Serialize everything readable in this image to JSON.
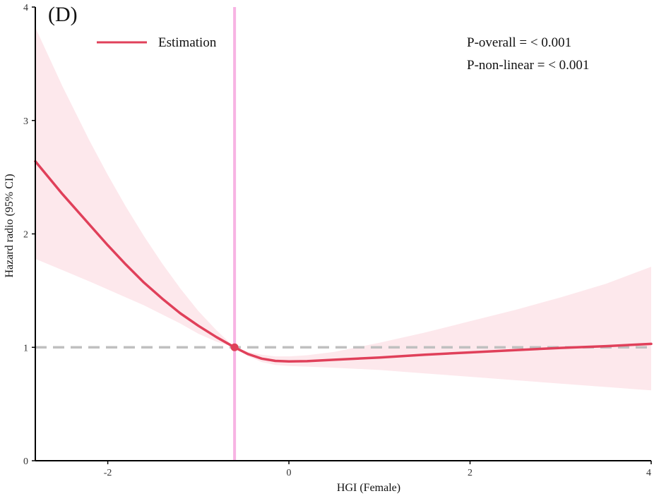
{
  "chart_data": {
    "type": "line",
    "panel_label": "(D)",
    "xlabel": "HGI (Female)",
    "ylabel": "Hazard  radio (95% CI)",
    "xlim": [
      -2.8,
      4.0
    ],
    "ylim": [
      0,
      4
    ],
    "x_ticks": [
      -2,
      0,
      2,
      4
    ],
    "y_ticks": [
      0,
      1,
      2,
      3,
      4
    ],
    "grid": false,
    "legend": {
      "position": "top-left",
      "entries": [
        "Estimation"
      ]
    },
    "annotations": [
      "P-overall = < 0.001",
      "P-non-linear = < 0.001"
    ],
    "reference_line_y": 1,
    "knot_x": -0.6,
    "knot_point": {
      "x": -0.6,
      "y": 1.0
    },
    "series": [
      {
        "name": "Estimation",
        "x": [
          -2.8,
          -2.5,
          -2.2,
          -2.0,
          -1.8,
          -1.6,
          -1.4,
          -1.2,
          -1.0,
          -0.8,
          -0.6,
          -0.45,
          -0.3,
          -0.15,
          0.0,
          0.2,
          0.5,
          1.0,
          1.5,
          2.0,
          2.5,
          3.0,
          3.5,
          4.0
        ],
        "y": [
          2.64,
          2.35,
          2.08,
          1.9,
          1.73,
          1.57,
          1.43,
          1.3,
          1.19,
          1.09,
          1.0,
          0.94,
          0.9,
          0.88,
          0.875,
          0.878,
          0.89,
          0.91,
          0.935,
          0.955,
          0.975,
          0.995,
          1.01,
          1.03
        ],
        "lower": [
          1.78,
          1.68,
          1.58,
          1.51,
          1.44,
          1.37,
          1.29,
          1.21,
          1.12,
          1.05,
          1.0,
          0.92,
          0.87,
          0.845,
          0.835,
          0.83,
          0.82,
          0.8,
          0.77,
          0.74,
          0.71,
          0.68,
          0.65,
          0.62
        ],
        "upper": [
          3.82,
          3.3,
          2.82,
          2.52,
          2.24,
          1.98,
          1.74,
          1.52,
          1.32,
          1.15,
          1.0,
          0.96,
          0.935,
          0.92,
          0.92,
          0.93,
          0.96,
          1.04,
          1.13,
          1.23,
          1.33,
          1.44,
          1.56,
          1.71
        ]
      }
    ],
    "colors": {
      "line": "#e0405a",
      "band": "#fde8ec",
      "reference_line": "#c0c0c0",
      "knot_line": "#f7b3e3",
      "axis": "#000000"
    }
  }
}
